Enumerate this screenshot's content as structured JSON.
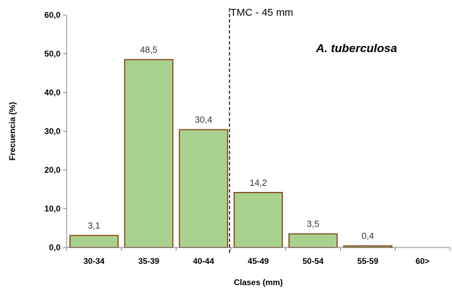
{
  "chart_data": {
    "type": "bar",
    "categories": [
      "30-34",
      "35-39",
      "40-44",
      "45-49",
      "50-54",
      "55-59",
      "60>"
    ],
    "values": [
      3.1,
      48.5,
      30.4,
      14.2,
      3.5,
      0.4,
      0
    ],
    "data_labels": [
      "3,1",
      "48,5",
      "30,4",
      "14,2",
      "3,5",
      "0,4",
      ""
    ],
    "xlabel": "Clases (mm)",
    "ylabel": "Frecuencia (%)",
    "ylim": [
      0,
      60
    ],
    "yticks": [
      "0,0",
      "10,0",
      "20,0",
      "30,0",
      "40,0",
      "50,0",
      "60,0"
    ],
    "annotations": {
      "species": "A. tuberculosa",
      "reference_line_label": "TMC - 45 mm"
    },
    "grid": false,
    "bar_fill": "#a9d18e",
    "bar_stroke": "#843c0c"
  }
}
